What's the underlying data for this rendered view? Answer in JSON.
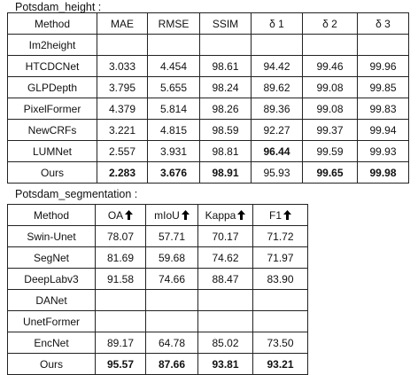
{
  "height_section": {
    "caption": "Potsdam_height :",
    "headers": [
      "Method",
      "MAE",
      "RMSE",
      "SSIM",
      "δ 1",
      "δ 2",
      "δ 3"
    ],
    "rows": [
      {
        "cells": [
          "Im2height",
          "",
          "",
          "",
          "",
          "",
          ""
        ],
        "bold": []
      },
      {
        "cells": [
          "HTCDCNet",
          "3.033",
          "4.454",
          "98.61",
          "94.42",
          "99.46",
          "99.96"
        ],
        "bold": []
      },
      {
        "cells": [
          "GLPDepth",
          "3.795",
          "5.655",
          "98.24",
          "89.62",
          "99.08",
          "99.85"
        ],
        "bold": []
      },
      {
        "cells": [
          "PixelFormer",
          "4.379",
          "5.814",
          "98.26",
          "89.36",
          "99.08",
          "99.83"
        ],
        "bold": []
      },
      {
        "cells": [
          "NewCRFs",
          "3.221",
          "4.815",
          "98.59",
          "92.27",
          "99.37",
          "99.94"
        ],
        "bold": []
      },
      {
        "cells": [
          "LUMNet",
          "2.557",
          "3.931",
          "98.81",
          "96.44",
          "99.59",
          "99.93"
        ],
        "bold": [
          4
        ]
      },
      {
        "cells": [
          "Ours",
          "2.283",
          "3.676",
          "98.91",
          "95.93",
          "99.65",
          "99.98"
        ],
        "bold": [
          1,
          2,
          3,
          5,
          6
        ]
      }
    ]
  },
  "segmentation_section": {
    "caption": "Potsdam_segmentation :",
    "headers": [
      {
        "label": "Method",
        "arrow": false
      },
      {
        "label": "OA",
        "arrow": true
      },
      {
        "label": "mIoU",
        "arrow": true
      },
      {
        "label": "Kappa",
        "arrow": true
      },
      {
        "label": "F1",
        "arrow": true
      }
    ],
    "rows": [
      {
        "cells": [
          "Swin-Unet",
          "78.07",
          "57.71",
          "70.17",
          "71.72"
        ],
        "bold": []
      },
      {
        "cells": [
          "SegNet",
          "81.69",
          "59.68",
          "74.62",
          "71.97"
        ],
        "bold": []
      },
      {
        "cells": [
          "DeepLabv3",
          "91.58",
          "74.66",
          "88.47",
          "83.90"
        ],
        "bold": []
      },
      {
        "cells": [
          "DANet",
          "",
          "",
          "",
          ""
        ],
        "bold": []
      },
      {
        "cells": [
          "UnetFormer",
          "",
          "",
          "",
          ""
        ],
        "bold": []
      },
      {
        "cells": [
          "EncNet",
          "89.17",
          "64.78",
          "85.02",
          "73.50"
        ],
        "bold": []
      },
      {
        "cells": [
          "Ours",
          "95.57",
          "87.66",
          "93.81",
          "93.21"
        ],
        "bold": [
          1,
          2,
          3,
          4
        ]
      }
    ],
    "arrow_icon": "up-arrow-icon"
  }
}
